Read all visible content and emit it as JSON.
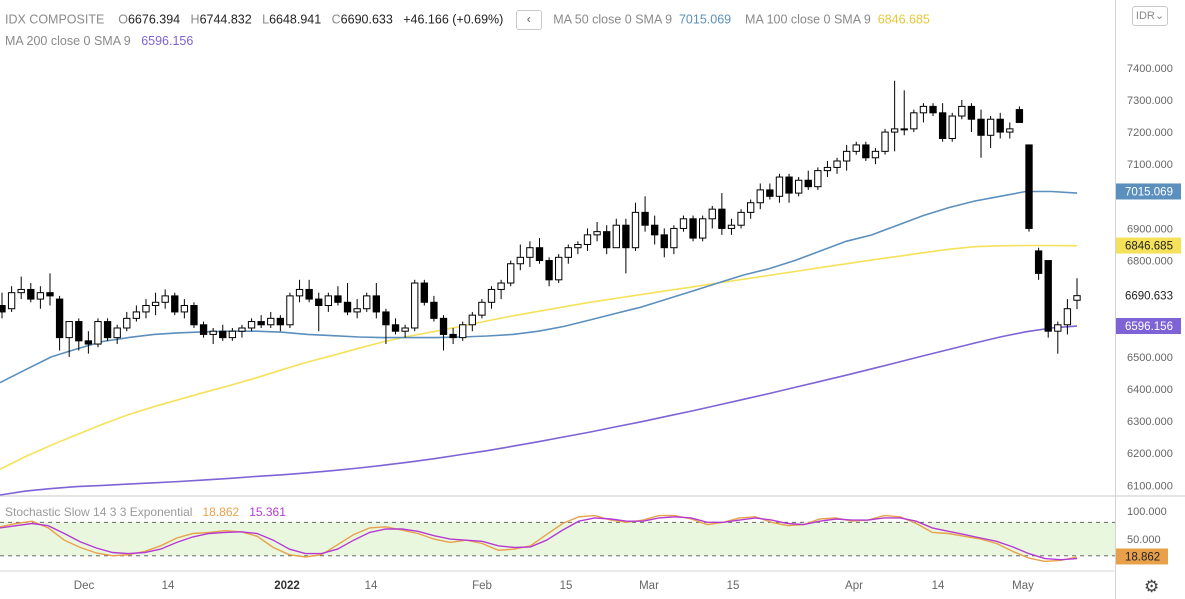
{
  "header": {
    "symbol": "IDX COMPOSITE",
    "open_label": "O",
    "open": "6676.394",
    "high_label": "H",
    "high": "6744.832",
    "low_label": "L",
    "low": "6648.941",
    "close_label": "C",
    "close": "6690.633",
    "change": "+46.166 (+0.69%)",
    "nav_glyph": "‹",
    "ma50_label": "MA 50 close 0 SMA 9",
    "ma50_value": "7015.069",
    "ma100_label": "MA 100 close 0 SMA 9",
    "ma100_value": "6846.685",
    "ma200_label": "MA 200 close 0 SMA 9",
    "ma200_value": "6596.156"
  },
  "currency": "IDR",
  "stochastic": {
    "label": "Stochastic Slow 14 3 3 Exponential",
    "k_value": "18.862",
    "d_value": "15.361"
  },
  "colors": {
    "ma50": "#5b8fbd",
    "ma100": "#f5e25a",
    "ma200": "#7e63d6",
    "stoch_k": "#e8a14a",
    "stoch_d": "#b53ad4",
    "stoch_band": "#eaf7df"
  },
  "chart_data": [
    {
      "type": "candlestick",
      "title": "IDX COMPOSITE",
      "x_tick_labels": [
        "Dec",
        "14",
        "2022",
        "14",
        "Feb",
        "15",
        "Mar",
        "15",
        "Apr",
        "14",
        "May"
      ],
      "y_tick_labels": [
        "7400.000",
        "7300.000",
        "7200.000",
        "7100.000",
        "6900.000",
        "6800.000",
        "6500.000",
        "6400.000",
        "6300.000",
        "6200.000",
        "6100.000"
      ],
      "price_labels": [
        "7015.069",
        "6846.685",
        "6690.633",
        "6596.156"
      ],
      "ylim": [
        6070,
        7440
      ],
      "grid": false,
      "ohlc": [
        [
          6660,
          6700,
          6620,
          6640
        ],
        [
          6650,
          6720,
          6640,
          6700
        ],
        [
          6700,
          6750,
          6680,
          6710
        ],
        [
          6710,
          6730,
          6670,
          6680
        ],
        [
          6680,
          6720,
          6650,
          6700
        ],
        [
          6700,
          6760,
          6660,
          6690
        ],
        [
          6680,
          6690,
          6520,
          6560
        ],
        [
          6560,
          6610,
          6500,
          6610
        ],
        [
          6610,
          6620,
          6520,
          6550
        ],
        [
          6550,
          6580,
          6510,
          6540
        ],
        [
          6540,
          6620,
          6530,
          6610
        ],
        [
          6610,
          6620,
          6550,
          6560
        ],
        [
          6560,
          6600,
          6540,
          6590
        ],
        [
          6590,
          6640,
          6580,
          6620
        ],
        [
          6620,
          6660,
          6610,
          6640
        ],
        [
          6640,
          6680,
          6620,
          6660
        ],
        [
          6660,
          6700,
          6630,
          6670
        ],
        [
          6670,
          6710,
          6650,
          6690
        ],
        [
          6690,
          6700,
          6630,
          6640
        ],
        [
          6640,
          6680,
          6620,
          6660
        ],
        [
          6660,
          6670,
          6590,
          6600
        ],
        [
          6600,
          6610,
          6560,
          6570
        ],
        [
          6570,
          6590,
          6540,
          6580
        ],
        [
          6580,
          6600,
          6550,
          6560
        ],
        [
          6560,
          6590,
          6550,
          6580
        ],
        [
          6580,
          6600,
          6560,
          6590
        ],
        [
          6590,
          6620,
          6580,
          6610
        ],
        [
          6610,
          6630,
          6590,
          6600
        ],
        [
          6600,
          6640,
          6590,
          6620
        ],
        [
          6620,
          6630,
          6580,
          6600
        ],
        [
          6600,
          6700,
          6590,
          6690
        ],
        [
          6690,
          6740,
          6670,
          6710
        ],
        [
          6710,
          6740,
          6670,
          6680
        ],
        [
          6680,
          6700,
          6580,
          6660
        ],
        [
          6660,
          6700,
          6640,
          6690
        ],
        [
          6690,
          6720,
          6660,
          6670
        ],
        [
          6670,
          6730,
          6630,
          6640
        ],
        [
          6640,
          6680,
          6620,
          6650
        ],
        [
          6650,
          6700,
          6640,
          6690
        ],
        [
          6690,
          6730,
          6620,
          6640
        ],
        [
          6640,
          6650,
          6540,
          6600
        ],
        [
          6600,
          6620,
          6570,
          6580
        ],
        [
          6580,
          6600,
          6560,
          6590
        ],
        [
          6590,
          6740,
          6580,
          6730
        ],
        [
          6730,
          6740,
          6660,
          6670
        ],
        [
          6670,
          6690,
          6610,
          6620
        ],
        [
          6620,
          6630,
          6520,
          6570
        ],
        [
          6570,
          6590,
          6540,
          6560
        ],
        [
          6560,
          6610,
          6550,
          6600
        ],
        [
          6600,
          6640,
          6580,
          6630
        ],
        [
          6630,
          6680,
          6620,
          6670
        ],
        [
          6670,
          6720,
          6650,
          6710
        ],
        [
          6710,
          6740,
          6680,
          6730
        ],
        [
          6730,
          6800,
          6720,
          6790
        ],
        [
          6790,
          6850,
          6770,
          6810
        ],
        [
          6810,
          6860,
          6780,
          6840
        ],
        [
          6840,
          6870,
          6790,
          6800
        ],
        [
          6800,
          6810,
          6720,
          6740
        ],
        [
          6740,
          6820,
          6730,
          6810
        ],
        [
          6810,
          6850,
          6790,
          6840
        ],
        [
          6840,
          6860,
          6820,
          6850
        ],
        [
          6850,
          6900,
          6830,
          6880
        ],
        [
          6880,
          6920,
          6860,
          6890
        ],
        [
          6890,
          6910,
          6820,
          6840
        ],
        [
          6840,
          6930,
          6840,
          6910
        ],
        [
          6910,
          6930,
          6760,
          6840
        ],
        [
          6840,
          6980,
          6830,
          6950
        ],
        [
          6950,
          7000,
          6890,
          6910
        ],
        [
          6910,
          6940,
          6850,
          6880
        ],
        [
          6880,
          6900,
          6810,
          6840
        ],
        [
          6840,
          6910,
          6820,
          6900
        ],
        [
          6900,
          6940,
          6890,
          6930
        ],
        [
          6930,
          6940,
          6860,
          6870
        ],
        [
          6870,
          6940,
          6860,
          6930
        ],
        [
          6930,
          6970,
          6900,
          6960
        ],
        [
          6960,
          7010,
          6880,
          6900
        ],
        [
          6900,
          6930,
          6880,
          6910
        ],
        [
          6910,
          6960,
          6900,
          6950
        ],
        [
          6950,
          6990,
          6930,
          6980
        ],
        [
          6980,
          7040,
          6960,
          7020
        ],
        [
          7020,
          7040,
          6990,
          7000
        ],
        [
          7000,
          7070,
          6980,
          7060
        ],
        [
          7060,
          7070,
          6980,
          7010
        ],
        [
          7010,
          7060,
          7000,
          7050
        ],
        [
          7050,
          7080,
          7020,
          7030
        ],
        [
          7030,
          7090,
          7020,
          7080
        ],
        [
          7080,
          7110,
          7060,
          7090
        ],
        [
          7090,
          7120,
          7070,
          7110
        ],
        [
          7110,
          7160,
          7080,
          7140
        ],
        [
          7140,
          7170,
          7130,
          7160
        ],
        [
          7160,
          7170,
          7110,
          7120
        ],
        [
          7120,
          7150,
          7100,
          7140
        ],
        [
          7140,
          7210,
          7130,
          7200
        ],
        [
          7200,
          7360,
          7140,
          7210
        ],
        [
          7210,
          7330,
          7190,
          7210
        ],
        [
          7210,
          7270,
          7200,
          7260
        ],
        [
          7260,
          7290,
          7230,
          7280
        ],
        [
          7280,
          7290,
          7250,
          7260
        ],
        [
          7260,
          7290,
          7170,
          7180
        ],
        [
          7180,
          7260,
          7170,
          7250
        ],
        [
          7250,
          7300,
          7240,
          7280
        ],
        [
          7280,
          7290,
          7200,
          7240
        ],
        [
          7240,
          7270,
          7120,
          7190
        ],
        [
          7190,
          7250,
          7150,
          7240
        ],
        [
          7240,
          7260,
          7180,
          7200
        ],
        [
          7200,
          7230,
          7180,
          7210
        ],
        [
          7270,
          7280,
          7230,
          7230
        ],
        [
          7160,
          7160,
          6890,
          6900
        ],
        [
          6830,
          6840,
          6740,
          6760
        ],
        [
          6800,
          6800,
          6560,
          6580
        ],
        [
          6580,
          6610,
          6510,
          6600
        ],
        [
          6600,
          6680,
          6570,
          6650
        ],
        [
          6676.394,
          6744.832,
          6648.941,
          6690.633
        ]
      ],
      "ma50": [
        6420,
        6460,
        6500,
        6525,
        6548,
        6560,
        6570,
        6575,
        6578,
        6580,
        6580,
        6577,
        6570,
        6566,
        6562,
        6560,
        6560,
        6560,
        6562,
        6565,
        6570,
        6580,
        6595,
        6615,
        6635,
        6655,
        6680,
        6705,
        6730,
        6755,
        6775,
        6800,
        6830,
        6860,
        6880,
        6910,
        6940,
        6965,
        6985,
        7000,
        7015,
        7015,
        7010
      ],
      "ma100": [
        6150,
        6190,
        6225,
        6258,
        6290,
        6320,
        6345,
        6368,
        6390,
        6412,
        6435,
        6460,
        6484,
        6505,
        6527,
        6548,
        6565,
        6580,
        6596,
        6612,
        6628,
        6642,
        6656,
        6670,
        6682,
        6694,
        6706,
        6718,
        6730,
        6742,
        6754,
        6766,
        6778,
        6790,
        6802,
        6813,
        6824,
        6835,
        6843,
        6846,
        6847,
        6847,
        6846
      ],
      "ma200": [
        6070,
        6082,
        6090,
        6096,
        6100,
        6104,
        6108,
        6112,
        6117,
        6122,
        6128,
        6133,
        6139,
        6146,
        6154,
        6163,
        6173,
        6184,
        6196,
        6208,
        6222,
        6236,
        6251,
        6266,
        6282,
        6298,
        6315,
        6332,
        6350,
        6368,
        6386,
        6405,
        6424,
        6443,
        6463,
        6483,
        6503,
        6523,
        6543,
        6562,
        6578,
        6590,
        6596
      ]
    },
    {
      "type": "line",
      "title": "Stochastic Slow 14 3 3 Exponential",
      "y_tick_labels": [
        "100.000",
        "50.000"
      ],
      "price_labels": [
        "18.862"
      ],
      "ylim": [
        0,
        120
      ],
      "band": [
        20,
        80
      ],
      "series": [
        {
          "name": "%K",
          "values": [
            72,
            78,
            82,
            70,
            48,
            35,
            25,
            20,
            22,
            28,
            38,
            52,
            60,
            62,
            65,
            63,
            55,
            35,
            22,
            18,
            22,
            40,
            58,
            70,
            72,
            66,
            60,
            50,
            44,
            48,
            42,
            30,
            32,
            38,
            58,
            78,
            90,
            92,
            84,
            80,
            84,
            92,
            92,
            86,
            76,
            80,
            88,
            90,
            80,
            74,
            76,
            86,
            88,
            82,
            84,
            92,
            90,
            78,
            62,
            60,
            55,
            50,
            42,
            28,
            16,
            10,
            12,
            18
          ]
        },
        {
          "name": "%D",
          "values": [
            70,
            74,
            78,
            74,
            60,
            45,
            34,
            26,
            24,
            26,
            32,
            44,
            54,
            60,
            62,
            63,
            60,
            48,
            32,
            24,
            24,
            32,
            48,
            62,
            68,
            68,
            64,
            56,
            50,
            48,
            46,
            38,
            35,
            36,
            48,
            66,
            82,
            88,
            86,
            82,
            82,
            88,
            90,
            88,
            80,
            80,
            84,
            88,
            84,
            78,
            76,
            82,
            86,
            84,
            84,
            88,
            88,
            82,
            70,
            64,
            58,
            52,
            46,
            36,
            24,
            15,
            13,
            15
          ]
        }
      ]
    }
  ]
}
